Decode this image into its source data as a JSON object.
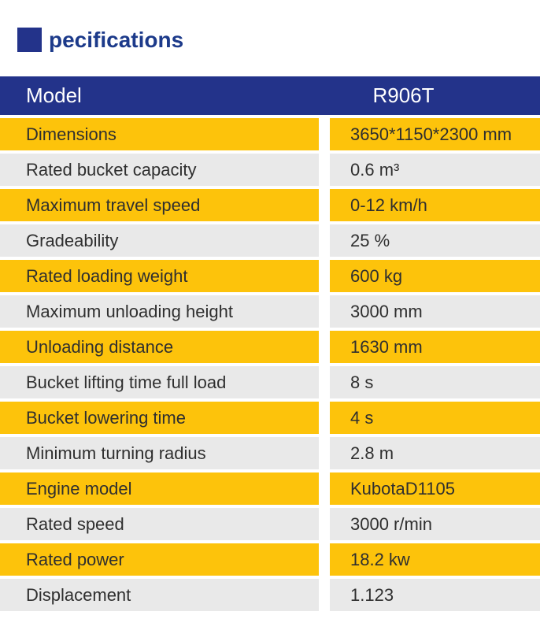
{
  "title": {
    "text": "pecifications"
  },
  "table": {
    "header": {
      "label": "Model",
      "value": "R906T"
    },
    "rows": [
      {
        "label": "Dimensions",
        "value": "3650*1150*2300 mm"
      },
      {
        "label": "Rated bucket capacity",
        "value": "0.6 m³"
      },
      {
        "label": "Maximum travel speed",
        "value": "0-12 km/h"
      },
      {
        "label": "Gradeability",
        "value": "25 %"
      },
      {
        "label": "Rated loading weight",
        "value": "600 kg"
      },
      {
        "label": "Maximum unloading height",
        "value": "3000 mm"
      },
      {
        "label": "Unloading distance",
        "value": "1630 mm"
      },
      {
        "label": "Bucket lifting time full load",
        "value": "8 s"
      },
      {
        "label": "Bucket lowering time",
        "value": "4 s"
      },
      {
        "label": "Minimum turning radius",
        "value": "2.8 m"
      },
      {
        "label": "Engine model",
        "value": "KubotaD1105"
      },
      {
        "label": "Rated speed",
        "value": "3000 r/min"
      },
      {
        "label": "Rated power",
        "value": "18.2 kw"
      },
      {
        "label": "Displacement",
        "value": "1.123"
      }
    ],
    "colors": {
      "header_bg": "#23338a",
      "row_yellow": "#fdc30b",
      "row_gray": "#e9e9e9",
      "title_blue": "#1c3a8a",
      "text_dark": "#2f2f2f",
      "header_text": "#ffffff"
    }
  }
}
